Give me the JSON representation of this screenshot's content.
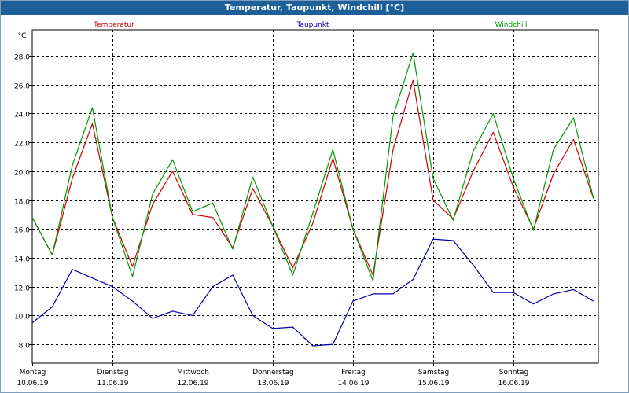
{
  "window": {
    "title": "Temperatur, Taupunkt, Windchill [°C]"
  },
  "chart_data": {
    "type": "line",
    "title": "Temperatur, Taupunkt, Windchill [°C]",
    "ylabel": "°C",
    "xlabel": "",
    "ylim": [
      6.7,
      29.8
    ],
    "xlim": [
      0,
      7.06
    ],
    "grid": true,
    "legend_placement": "top",
    "yticks": [
      {
        "value": 8,
        "label": "8,0"
      },
      {
        "value": 10,
        "label": "10,0"
      },
      {
        "value": 12,
        "label": "12,0"
      },
      {
        "value": 14,
        "label": "14,0"
      },
      {
        "value": 16,
        "label": "16,0"
      },
      {
        "value": 18,
        "label": "18,0"
      },
      {
        "value": 20,
        "label": "20,0"
      },
      {
        "value": 22,
        "label": "22,0"
      },
      {
        "value": 24,
        "label": "24,0"
      },
      {
        "value": 26,
        "label": "26,0"
      },
      {
        "value": 28,
        "label": "28,0"
      }
    ],
    "xticks": [
      {
        "value": 0,
        "day": "Montag",
        "date": "10.06.19"
      },
      {
        "value": 1,
        "day": "Dienstag",
        "date": "11.06.19"
      },
      {
        "value": 2,
        "day": "Mittwoch",
        "date": "12.06.19"
      },
      {
        "value": 3,
        "day": "Donnerstag",
        "date": "13.06.19"
      },
      {
        "value": 4,
        "day": "Freitag",
        "date": "14.06.19"
      },
      {
        "value": 5,
        "day": "Samstag",
        "date": "15.06.19"
      },
      {
        "value": 6,
        "day": "Sonntag",
        "date": "16.06.19"
      }
    ],
    "x": [
      0,
      0.25,
      0.5,
      0.75,
      1,
      1.25,
      1.5,
      1.75,
      2,
      2.25,
      2.5,
      2.75,
      3,
      3.25,
      3.5,
      3.75,
      4,
      4.25,
      4.5,
      4.75,
      5,
      5.25,
      5.5,
      5.75,
      6,
      6.25,
      6.5,
      6.75,
      7
    ],
    "series": [
      {
        "name": "Temperatur",
        "color": "#cc0000",
        "values": [
          16.8,
          14.2,
          19.5,
          23.3,
          16.8,
          13.4,
          17.7,
          20.0,
          17.0,
          16.8,
          14.7,
          18.8,
          16.2,
          13.3,
          16.4,
          20.9,
          16.0,
          12.8,
          21.5,
          26.3,
          18.0,
          16.7,
          20.0,
          22.7,
          18.9,
          16.0,
          19.8,
          22.2,
          18.1
        ]
      },
      {
        "name": "Taupunkt",
        "color": "#0000aa",
        "values": [
          9.5,
          10.6,
          13.2,
          12.6,
          12.0,
          11.0,
          9.8,
          10.3,
          10.0,
          12.0,
          12.8,
          10.0,
          9.1,
          9.2,
          7.9,
          8.0,
          11.0,
          11.5,
          11.5,
          12.5,
          15.3,
          15.2,
          13.5,
          11.6,
          11.6,
          10.8,
          11.5,
          11.8,
          11.0
        ]
      },
      {
        "name": "Windchill",
        "color": "#009900",
        "values": [
          16.8,
          14.2,
          20.4,
          24.4,
          16.8,
          12.7,
          18.4,
          20.8,
          17.2,
          17.8,
          14.6,
          19.6,
          16.2,
          12.8,
          17.1,
          21.5,
          16.0,
          12.4,
          23.8,
          28.2,
          19.5,
          16.6,
          21.4,
          24.0,
          19.5,
          15.9,
          21.5,
          23.7,
          18.1
        ]
      }
    ]
  }
}
